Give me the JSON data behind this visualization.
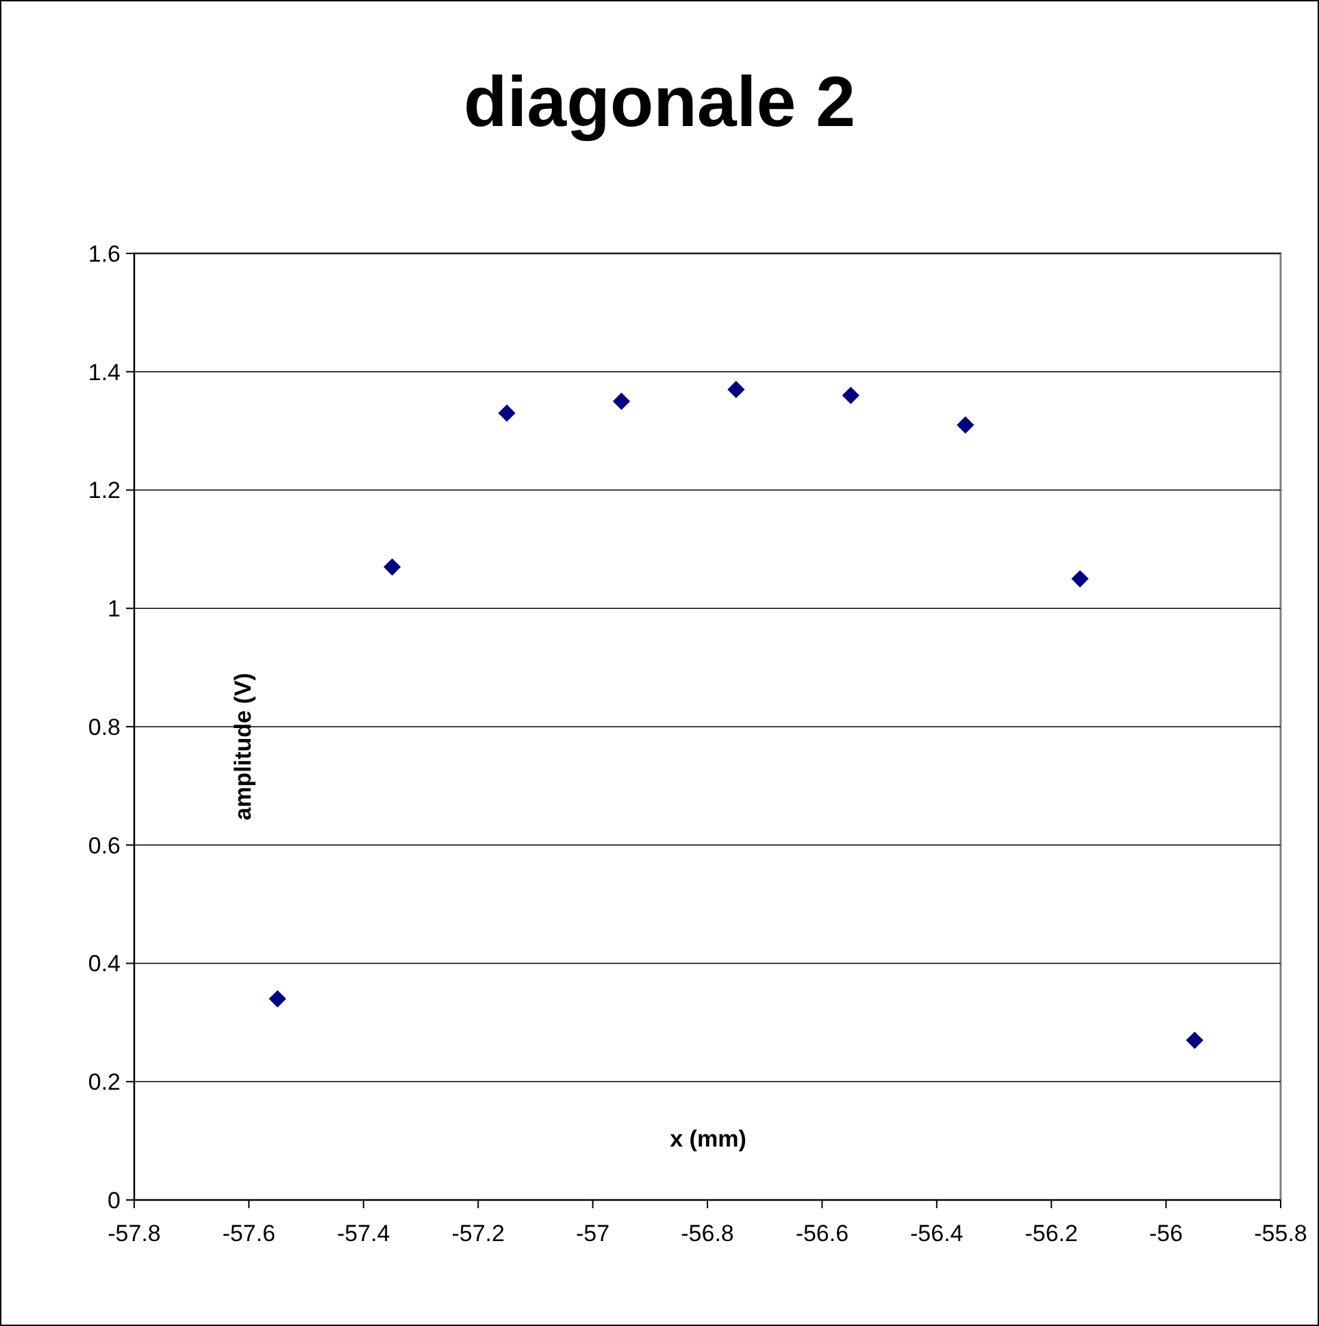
{
  "chart_data": {
    "type": "scatter",
    "title": "diagonale 2",
    "xlabel": "x (mm)",
    "ylabel": "amplitude (V)",
    "x": [
      -57.55,
      -57.35,
      -57.15,
      -56.95,
      -56.75,
      -56.55,
      -56.35,
      -56.15,
      -55.95
    ],
    "series": [
      {
        "color": "#000080",
        "values": [
          0.34,
          1.07,
          1.33,
          1.35,
          1.37,
          1.36,
          1.31,
          1.05,
          0.27
        ]
      }
    ],
    "xlim": [
      -57.8,
      -55.8
    ],
    "xticks": [
      -57.8,
      -57.6,
      -57.4,
      -57.2,
      -57,
      -56.8,
      -56.6,
      -56.4,
      -56.2,
      -56,
      -55.8
    ],
    "ylim": [
      0,
      1.6
    ],
    "yticks": [
      0,
      0.2,
      0.4,
      0.6,
      0.8,
      1,
      1.2,
      1.4,
      1.6
    ],
    "grid": "y",
    "marker": "diamond"
  }
}
